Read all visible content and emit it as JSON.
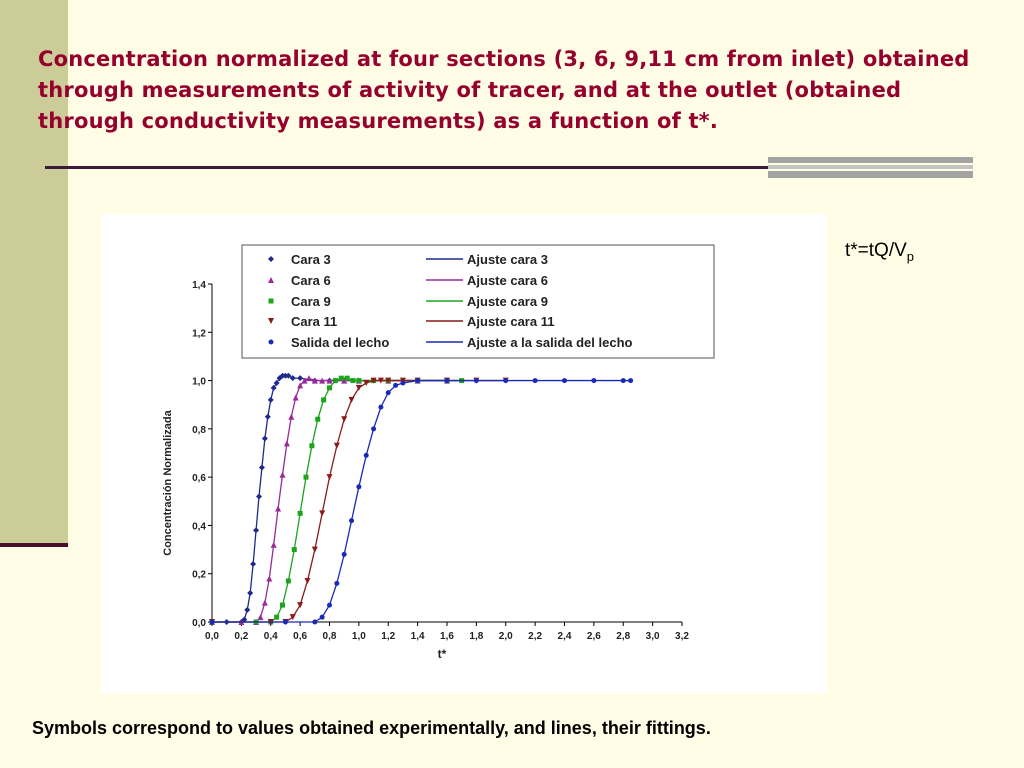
{
  "slide": {
    "title": "Concentration normalized at four sections (3, 6, 9,11 cm from inlet) obtained through measurements of activity of tracer, and at the outlet (obtained through conductivity measurements) as a function of t*.",
    "formula_main": "t*=tQ/V",
    "formula_sub": "p",
    "caption": "Symbols correspond to values obtained experimentally, and lines, their fittings.",
    "colors": {
      "title": "#96002d",
      "left_band": "#cccc99",
      "background": "#fffde6"
    }
  },
  "chart_data": {
    "type": "line",
    "xlabel": "t*",
    "ylabel": "Concentración Normalizada",
    "xlim": [
      0.0,
      3.2
    ],
    "ylim": [
      0.0,
      1.4
    ],
    "x_ticks": [
      "0,0",
      "0,2",
      "0,4",
      "0,6",
      "0,8",
      "1,0",
      "1,2",
      "1,4",
      "1,6",
      "1,8",
      "2,0",
      "2,2",
      "2,4",
      "2,6",
      "2,8",
      "3,0",
      "3,2"
    ],
    "y_ticks": [
      "0,0",
      "0,2",
      "0,4",
      "0,6",
      "0,8",
      "1,0",
      "1,2",
      "1,4"
    ],
    "legend": {
      "position": "top",
      "markers": [
        "Cara 3",
        "Cara 6",
        "Cara 9",
        "Cara 11",
        "Salida del lecho"
      ],
      "lines": [
        "Ajuste cara 3",
        "Ajuste cara 6",
        "Ajuste cara 9",
        "Ajuste cara 11",
        "Ajuste a la salida del lecho"
      ]
    },
    "series": [
      {
        "name": "Cara 3",
        "fit_name": "Ajuste cara 3",
        "color": "#1f2a8c",
        "marker": "diamond",
        "x": [
          0.0,
          0.1,
          0.2,
          0.22,
          0.24,
          0.26,
          0.28,
          0.3,
          0.32,
          0.34,
          0.36,
          0.38,
          0.4,
          0.42,
          0.44,
          0.46,
          0.48,
          0.5,
          0.52,
          0.55,
          0.6,
          0.7,
          0.8,
          1.0,
          1.2,
          1.4,
          1.6
        ],
        "y": [
          0.0,
          0.0,
          0.0,
          0.01,
          0.05,
          0.12,
          0.24,
          0.38,
          0.52,
          0.64,
          0.76,
          0.85,
          0.92,
          0.97,
          0.99,
          1.01,
          1.02,
          1.02,
          1.02,
          1.01,
          1.01,
          1.0,
          1.0,
          1.0,
          1.0,
          1.0,
          1.0
        ]
      },
      {
        "name": "Cara 6",
        "fit_name": "Ajuste cara 6",
        "color": "#9a2a9a",
        "marker": "triangle",
        "x": [
          0.0,
          0.2,
          0.3,
          0.33,
          0.36,
          0.39,
          0.42,
          0.45,
          0.48,
          0.51,
          0.54,
          0.57,
          0.6,
          0.63,
          0.66,
          0.7,
          0.75,
          0.8,
          0.9,
          1.0,
          1.2,
          1.4,
          1.6
        ],
        "y": [
          0.0,
          0.0,
          0.0,
          0.02,
          0.08,
          0.18,
          0.32,
          0.47,
          0.61,
          0.74,
          0.85,
          0.93,
          0.98,
          1.0,
          1.01,
          1.0,
          1.0,
          1.0,
          1.0,
          1.0,
          1.0,
          1.0,
          1.0
        ]
      },
      {
        "name": "Cara 9",
        "fit_name": "Ajuste cara 9",
        "color": "#1aa51a",
        "marker": "square",
        "x": [
          0.0,
          0.3,
          0.4,
          0.44,
          0.48,
          0.52,
          0.56,
          0.6,
          0.64,
          0.68,
          0.72,
          0.76,
          0.8,
          0.84,
          0.88,
          0.92,
          0.96,
          1.0,
          1.1,
          1.2,
          1.4,
          1.6,
          1.7
        ],
        "y": [
          0.0,
          0.0,
          0.0,
          0.02,
          0.07,
          0.17,
          0.3,
          0.45,
          0.6,
          0.73,
          0.84,
          0.92,
          0.97,
          1.0,
          1.01,
          1.01,
          1.0,
          1.0,
          1.0,
          1.0,
          1.0,
          1.0,
          1.0
        ]
      },
      {
        "name": "Cara 11",
        "fit_name": "Ajuste cara 11",
        "color": "#8b1a1a",
        "marker": "triangle-down",
        "x": [
          0.0,
          0.4,
          0.5,
          0.55,
          0.6,
          0.65,
          0.7,
          0.75,
          0.8,
          0.85,
          0.9,
          0.95,
          1.0,
          1.05,
          1.1,
          1.15,
          1.2,
          1.3,
          1.4,
          1.6,
          1.8,
          2.0
        ],
        "y": [
          0.0,
          0.0,
          0.0,
          0.02,
          0.07,
          0.17,
          0.3,
          0.45,
          0.6,
          0.73,
          0.84,
          0.92,
          0.97,
          0.99,
          1.0,
          1.0,
          1.0,
          1.0,
          1.0,
          1.0,
          1.0,
          1.0
        ]
      },
      {
        "name": "Salida del lecho",
        "fit_name": "Ajuste a la salida del lecho",
        "color": "#1a2ab8",
        "marker": "circle",
        "x": [
          0.0,
          0.5,
          0.7,
          0.75,
          0.8,
          0.85,
          0.9,
          0.95,
          1.0,
          1.05,
          1.1,
          1.15,
          1.2,
          1.25,
          1.3,
          1.4,
          1.6,
          1.8,
          2.0,
          2.2,
          2.4,
          2.6,
          2.8,
          2.85
        ],
        "y": [
          0.0,
          0.0,
          0.0,
          0.02,
          0.07,
          0.16,
          0.28,
          0.42,
          0.56,
          0.69,
          0.8,
          0.89,
          0.95,
          0.98,
          0.99,
          1.0,
          1.0,
          1.0,
          1.0,
          1.0,
          1.0,
          1.0,
          1.0,
          1.0
        ]
      }
    ]
  }
}
